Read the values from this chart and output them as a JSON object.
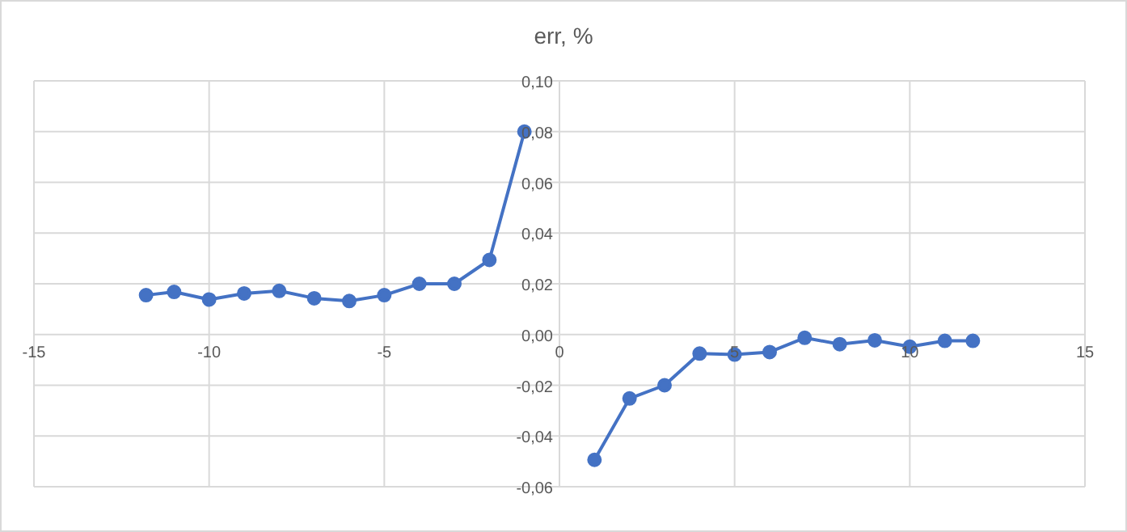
{
  "chart_data": {
    "type": "line",
    "title": "err, %",
    "series": [
      {
        "color": "#4472c4",
        "x": [
          -11.8,
          -11,
          -10,
          -9,
          -8,
          -7,
          -6,
          -5,
          -4,
          -3,
          -2,
          -1
        ],
        "values": [
          0.0155,
          0.0168,
          0.0138,
          0.0162,
          0.0172,
          0.0143,
          0.0132,
          0.0155,
          0.02,
          0.02,
          0.0294,
          0.08
        ]
      },
      {
        "color": "#4472c4",
        "x": [
          1,
          2,
          3,
          4,
          5,
          6,
          7,
          8,
          9,
          10,
          11,
          11.8
        ],
        "values": [
          -0.0494,
          -0.0252,
          -0.02,
          -0.0075,
          -0.0079,
          -0.0069,
          -0.0013,
          -0.0038,
          -0.0023,
          -0.0048,
          -0.0025,
          -0.0025
        ]
      }
    ],
    "xlim": [
      -15,
      15
    ],
    "xticks": [
      -15,
      -10,
      -5,
      0,
      5,
      10,
      15
    ],
    "ylim": [
      -0.06,
      0.1
    ],
    "yticks": [
      {
        "value": -0.06,
        "label": "-0,06"
      },
      {
        "value": -0.04,
        "label": "-0,04"
      },
      {
        "value": -0.02,
        "label": "-0,02"
      },
      {
        "value": 0,
        "label": "0,00"
      },
      {
        "value": 0.02,
        "label": "0,02"
      },
      {
        "value": 0.04,
        "label": "0,04"
      },
      {
        "value": 0.06,
        "label": "0,06"
      },
      {
        "value": 0.08,
        "label": "0,08"
      },
      {
        "value": 0.1,
        "label": "0,10"
      }
    ],
    "grid": true,
    "marker": "circle",
    "line_style": "solid"
  }
}
